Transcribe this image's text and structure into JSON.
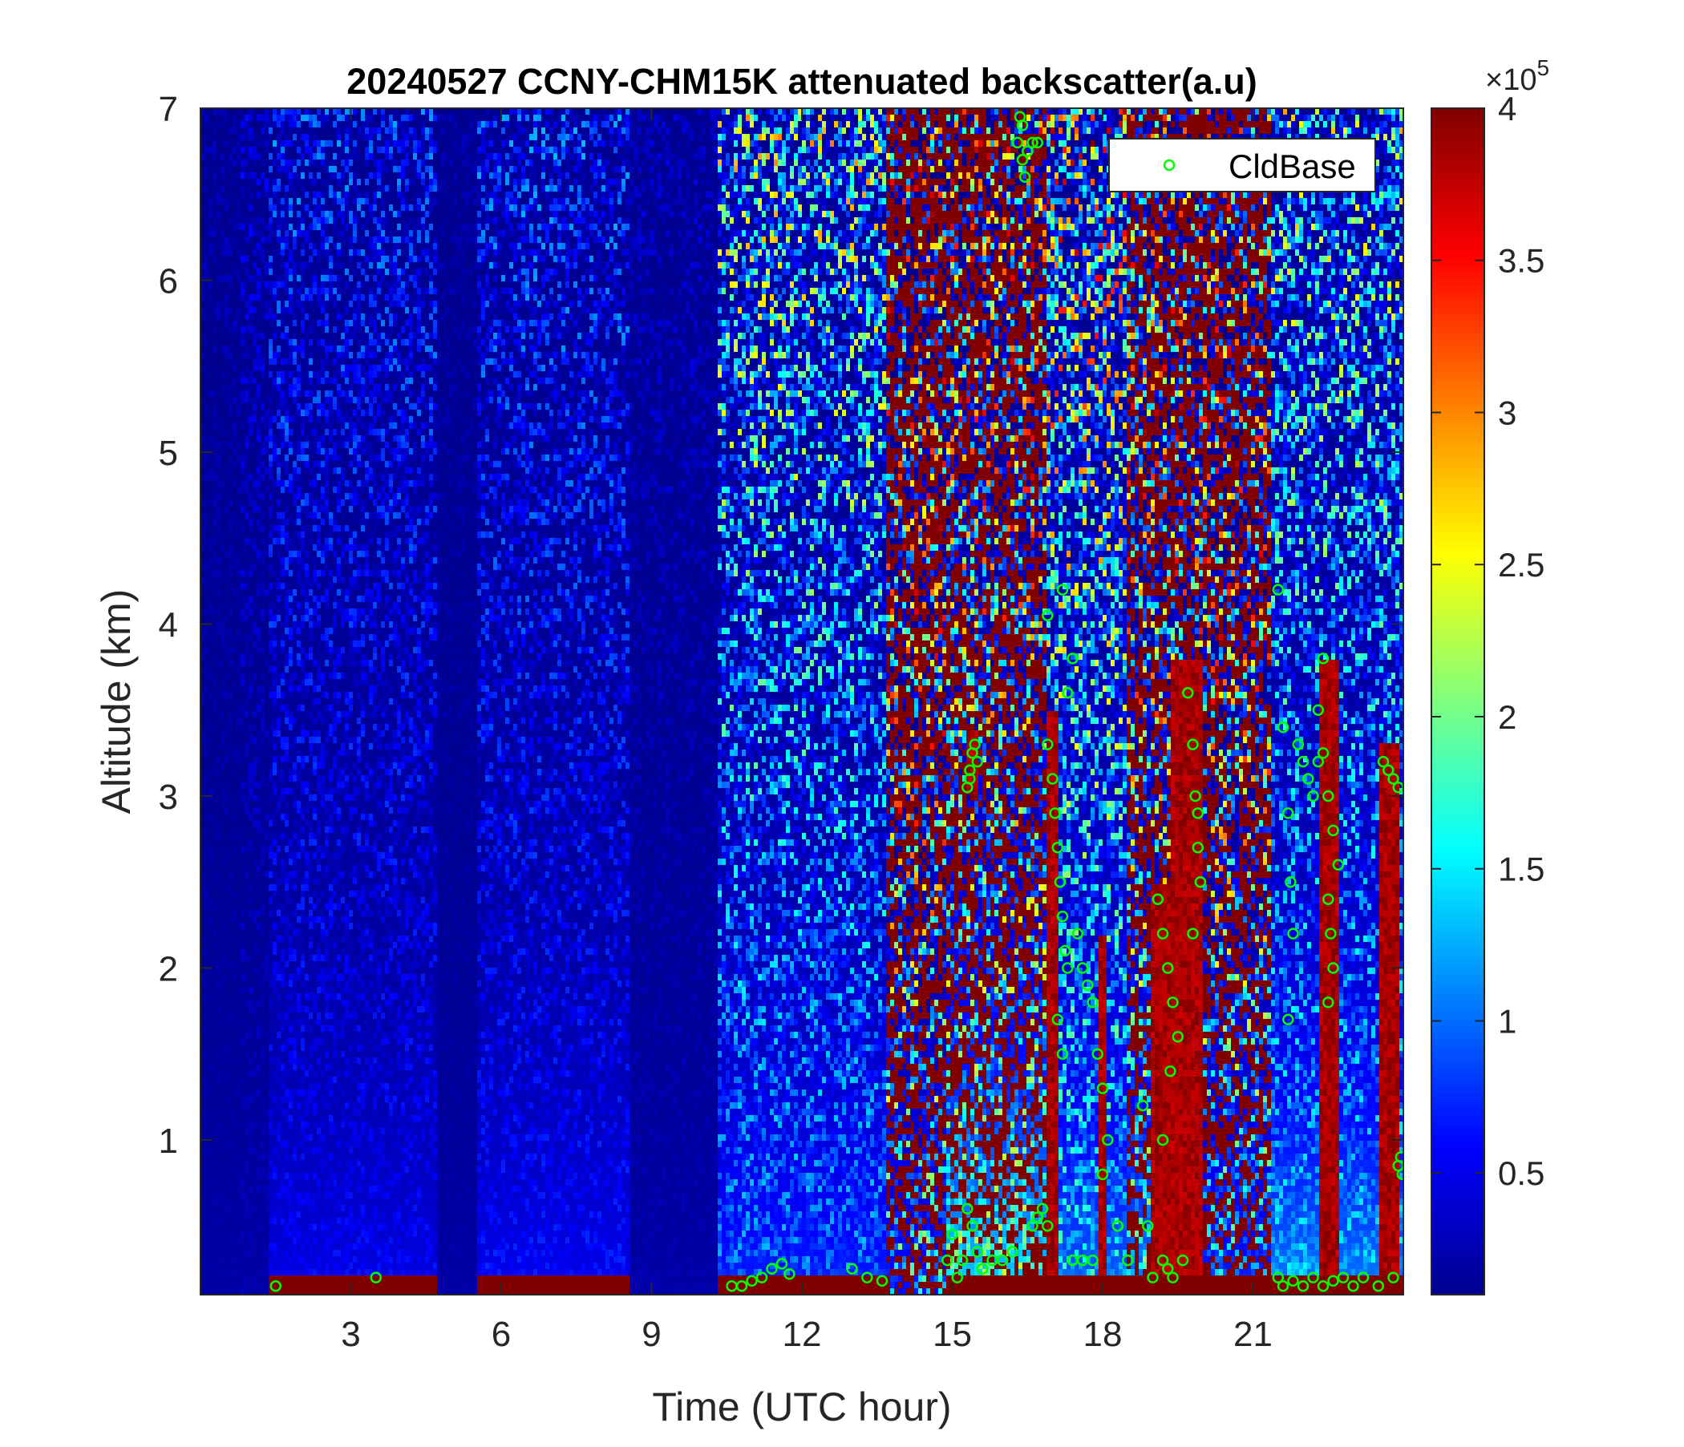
{
  "chart_data": {
    "type": "heatmap",
    "title": "20240527 CCNY-CHM15K attenuated backscatter(a.u)",
    "xlabel": "Time (UTC hour)",
    "ylabel": "Altitude (km)",
    "xlim": [
      0,
      24
    ],
    "ylim": [
      0.1,
      7
    ],
    "xticks": [
      "3",
      "6",
      "9",
      "12",
      "15",
      "18",
      "21"
    ],
    "yticks": [
      "1",
      "2",
      "3",
      "4",
      "5",
      "6",
      "7"
    ],
    "colorbar": {
      "colormap": "jet",
      "range": [
        0.1,
        4
      ],
      "ticks": [
        "0.5",
        "1",
        "1.5",
        "2",
        "2.5",
        "3",
        "3.5",
        "4"
      ],
      "multiplier": "×10",
      "exponent": "5"
    },
    "legend": {
      "position": "top-right",
      "entries": [
        "CldBase"
      ],
      "marker_color": "#00ff00"
    },
    "profile_regimes": [
      {
        "t0": 0,
        "t1": 0.8,
        "aerosol": 0.1,
        "noise": 0.12,
        "surface": 0
      },
      {
        "t0": 0.8,
        "t1": 1.4,
        "aerosol": 0.1,
        "noise": 0.25,
        "surface": 0
      },
      {
        "t0": 1.4,
        "t1": 4.7,
        "aerosol": 0.35,
        "noise": 0.55,
        "surface": 0.8
      },
      {
        "t0": 4.7,
        "t1": 5.5,
        "aerosol": 0.1,
        "noise": 0.1,
        "surface": 0
      },
      {
        "t0": 5.5,
        "t1": 8.6,
        "aerosol": 0.4,
        "noise": 0.6,
        "surface": 0.3
      },
      {
        "t0": 8.6,
        "t1": 10.3,
        "aerosol": 0.1,
        "noise": 0.18,
        "surface": 0
      },
      {
        "t0": 10.3,
        "t1": 13.7,
        "aerosol": 0.6,
        "noise": 1.5,
        "surface": 1.0
      },
      {
        "t0": 13.7,
        "t1": 14.9,
        "aerosol": 0.5,
        "noise": 3.2,
        "surface": 0
      },
      {
        "t0": 14.9,
        "t1": 16.9,
        "aerosol": 1.4,
        "noise": 2.4,
        "surface": 1.0
      },
      {
        "t0": 16.9,
        "t1": 18.5,
        "aerosol": 0.9,
        "noise": 2.0,
        "surface": 1.0
      },
      {
        "t0": 18.5,
        "t1": 20.0,
        "aerosol": 1.0,
        "noise": 2.6,
        "surface": 1.0
      },
      {
        "t0": 20.0,
        "t1": 21.4,
        "aerosol": 0.6,
        "noise": 2.8,
        "surface": 0.5
      },
      {
        "t0": 21.4,
        "t1": 24,
        "aerosol": 1.0,
        "noise": 1.4,
        "surface": 1.0
      }
    ],
    "cloud_layers": [
      {
        "t0": 15.3,
        "t1": 15.5,
        "base": 3.0,
        "top": 3.4
      },
      {
        "t0": 16.85,
        "t1": 17.1,
        "base": 0.1,
        "top": 3.5
      },
      {
        "t0": 17.9,
        "t1": 18.1,
        "base": 0.1,
        "top": 2.2
      },
      {
        "t0": 19.0,
        "t1": 19.4,
        "base": 0.1,
        "top": 2.5
      },
      {
        "t0": 19.4,
        "t1": 20.0,
        "base": 0.1,
        "top": 3.8
      },
      {
        "t0": 22.3,
        "t1": 22.7,
        "base": 0.1,
        "top": 3.8
      },
      {
        "t0": 23.5,
        "t1": 23.9,
        "base": 0.1,
        "top": 3.3
      }
    ],
    "cld_base_points": [
      [
        1.5,
        0.15
      ],
      [
        3.5,
        0.2
      ],
      [
        10.6,
        0.15
      ],
      [
        10.8,
        0.15
      ],
      [
        11.0,
        0.18
      ],
      [
        11.2,
        0.2
      ],
      [
        11.4,
        0.25
      ],
      [
        11.6,
        0.28
      ],
      [
        11.75,
        0.22
      ],
      [
        13.0,
        0.25
      ],
      [
        13.3,
        0.2
      ],
      [
        13.6,
        0.18
      ],
      [
        14.9,
        0.3
      ],
      [
        15.0,
        0.45
      ],
      [
        15.1,
        0.2
      ],
      [
        15.2,
        0.3
      ],
      [
        15.3,
        0.6
      ],
      [
        15.4,
        0.5
      ],
      [
        15.5,
        0.35
      ],
      [
        15.6,
        0.25
      ],
      [
        15.8,
        0.3
      ],
      [
        16.0,
        0.3
      ],
      [
        16.2,
        0.35
      ],
      [
        15.3,
        3.05
      ],
      [
        15.35,
        3.15
      ],
      [
        15.4,
        3.25
      ],
      [
        15.45,
        3.3
      ],
      [
        15.35,
        3.1
      ],
      [
        15.5,
        3.2
      ],
      [
        16.3,
        6.8
      ],
      [
        16.4,
        6.7
      ],
      [
        16.45,
        6.6
      ],
      [
        16.5,
        6.75
      ],
      [
        16.6,
        6.8
      ],
      [
        16.7,
        6.8
      ],
      [
        16.35,
        6.95
      ],
      [
        16.4,
        6.9
      ],
      [
        16.6,
        0.5
      ],
      [
        16.7,
        0.55
      ],
      [
        16.8,
        0.6
      ],
      [
        16.9,
        0.5
      ],
      [
        16.9,
        3.3
      ],
      [
        17.0,
        3.1
      ],
      [
        17.05,
        2.9
      ],
      [
        17.1,
        2.7
      ],
      [
        17.15,
        2.5
      ],
      [
        17.2,
        2.3
      ],
      [
        17.25,
        2.1
      ],
      [
        17.3,
        2.0
      ],
      [
        17.1,
        1.7
      ],
      [
        17.2,
        1.5
      ],
      [
        17.3,
        3.6
      ],
      [
        17.4,
        3.8
      ],
      [
        17.2,
        4.2
      ],
      [
        16.9,
        4.05
      ],
      [
        17.5,
        2.2
      ],
      [
        17.6,
        2.0
      ],
      [
        17.7,
        1.9
      ],
      [
        17.8,
        1.8
      ],
      [
        17.9,
        1.5
      ],
      [
        18.0,
        1.3
      ],
      [
        18.1,
        1.0
      ],
      [
        18.0,
        0.8
      ],
      [
        17.8,
        0.3
      ],
      [
        17.6,
        0.3
      ],
      [
        17.4,
        0.3
      ],
      [
        18.3,
        0.5
      ],
      [
        18.5,
        0.3
      ],
      [
        18.8,
        1.2
      ],
      [
        18.9,
        0.5
      ],
      [
        19.0,
        0.2
      ],
      [
        19.2,
        0.3
      ],
      [
        19.3,
        0.25
      ],
      [
        19.4,
        0.2
      ],
      [
        19.6,
        0.3
      ],
      [
        19.1,
        2.4
      ],
      [
        19.2,
        2.2
      ],
      [
        19.3,
        2.0
      ],
      [
        19.4,
        1.8
      ],
      [
        19.5,
        1.6
      ],
      [
        19.35,
        1.4
      ],
      [
        19.2,
        1.0
      ],
      [
        19.7,
        3.6
      ],
      [
        19.8,
        3.3
      ],
      [
        19.85,
        3.0
      ],
      [
        19.9,
        2.7
      ],
      [
        19.95,
        2.5
      ],
      [
        19.8,
        2.2
      ],
      [
        19.9,
        2.9
      ],
      [
        21.5,
        0.2
      ],
      [
        21.6,
        0.15
      ],
      [
        21.8,
        0.18
      ],
      [
        22.0,
        0.15
      ],
      [
        22.2,
        0.2
      ],
      [
        22.4,
        0.15
      ],
      [
        22.6,
        0.18
      ],
      [
        22.8,
        0.2
      ],
      [
        23.0,
        0.15
      ],
      [
        23.2,
        0.2
      ],
      [
        23.5,
        0.15
      ],
      [
        23.8,
        0.2
      ],
      [
        21.5,
        4.2
      ],
      [
        21.6,
        3.4
      ],
      [
        21.7,
        2.9
      ],
      [
        21.75,
        2.5
      ],
      [
        21.8,
        2.2
      ],
      [
        21.7,
        1.7
      ],
      [
        21.9,
        3.3
      ],
      [
        22.0,
        3.2
      ],
      [
        22.1,
        3.1
      ],
      [
        22.2,
        3.0
      ],
      [
        22.3,
        3.2
      ],
      [
        22.4,
        3.25
      ],
      [
        22.5,
        3.0
      ],
      [
        22.6,
        2.8
      ],
      [
        22.7,
        2.6
      ],
      [
        22.5,
        2.4
      ],
      [
        22.55,
        2.2
      ],
      [
        22.6,
        2.0
      ],
      [
        22.5,
        1.8
      ],
      [
        22.4,
        3.8
      ],
      [
        22.3,
        3.5
      ],
      [
        23.6,
        3.2
      ],
      [
        23.7,
        3.15
      ],
      [
        23.8,
        3.1
      ],
      [
        23.9,
        3.05
      ],
      [
        23.95,
        0.9
      ],
      [
        23.9,
        0.85
      ],
      [
        23.98,
        0.8
      ]
    ]
  }
}
